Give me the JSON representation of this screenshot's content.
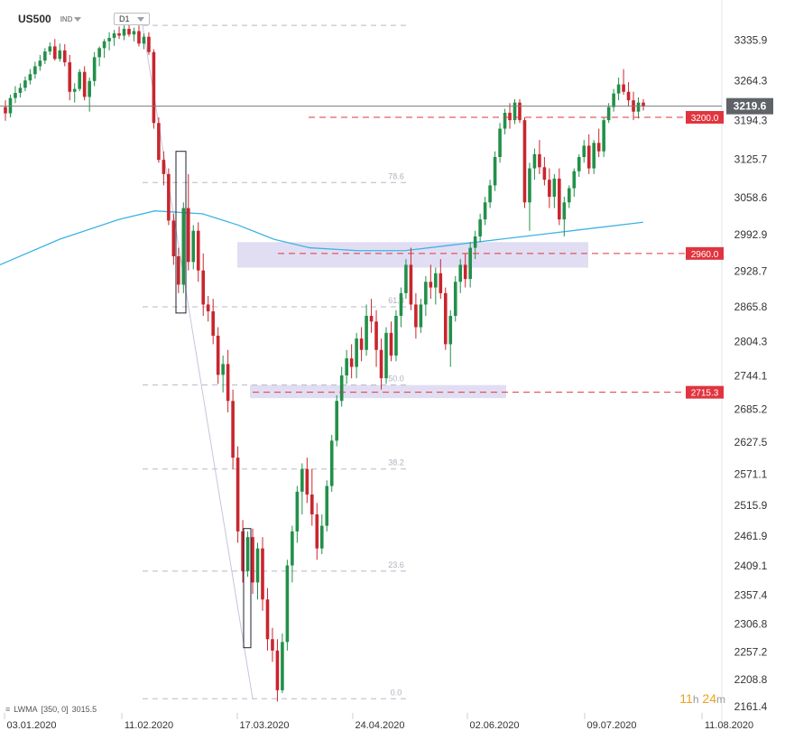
{
  "header": {
    "symbol": "US500",
    "exchange": "IND",
    "timeframe": "D1"
  },
  "indicator": {
    "name": "LWMA",
    "params": "[350, 0]",
    "value": "3015.5"
  },
  "timer": {
    "hours": "11",
    "h_unit": "h",
    "minutes": "24",
    "m_unit": "m"
  },
  "chart_data": {
    "type": "candlestick",
    "y_range": [
      2161.4,
      3375
    ],
    "y_ticks": [
      3335.9,
      3264.3,
      3194.3,
      3125.7,
      3058.6,
      2992.9,
      2928.7,
      2865.8,
      2804.3,
      2744.1,
      2685.2,
      2627.5,
      2571.1,
      2515.9,
      2461.9,
      2409.1,
      2357.4,
      2306.8,
      2257.2,
      2208.8,
      2161.4
    ],
    "x_labels": [
      "03.01.2020",
      "11.02.2020",
      "17.03.2020",
      "24.04.2020",
      "02.06.2020",
      "09.07.2020",
      "11.08.2020"
    ],
    "current_price": "3219.6",
    "levels": [
      {
        "label": "3200.0",
        "value": 3200.0
      },
      {
        "label": "2960.0",
        "value": 2960.0
      },
      {
        "label": "2715.3",
        "value": 2715.3
      }
    ],
    "fib_levels": [
      {
        "label": "78.6",
        "value": 3085
      },
      {
        "label": "61.8",
        "value": 2866
      },
      {
        "label": "50.0",
        "value": 2728
      },
      {
        "label": "38.2",
        "value": 2580
      },
      {
        "label": "23.6",
        "value": 2400
      },
      {
        "label": "0.0",
        "value": 2175
      }
    ],
    "zones": [
      {
        "from": 2935,
        "to": 2980
      },
      {
        "from": 2705,
        "to": 2728
      }
    ],
    "lwma_points": [
      [
        0,
        2940
      ],
      [
        50,
        2985
      ],
      [
        100,
        3020
      ],
      [
        130,
        3035
      ],
      [
        170,
        3030
      ],
      [
        200,
        3010
      ],
      [
        230,
        2985
      ],
      [
        260,
        2970
      ],
      [
        300,
        2965
      ],
      [
        340,
        2965
      ],
      [
        380,
        2975
      ],
      [
        420,
        2985
      ],
      [
        460,
        2995
      ],
      [
        500,
        3005
      ],
      [
        540,
        3015
      ]
    ],
    "candles": [
      [
        3218,
        3230,
        3194,
        3207
      ],
      [
        3207,
        3240,
        3200,
        3234
      ],
      [
        3234,
        3255,
        3225,
        3243
      ],
      [
        3243,
        3260,
        3235,
        3252
      ],
      [
        3252,
        3272,
        3246,
        3265
      ],
      [
        3265,
        3285,
        3258,
        3276
      ],
      [
        3276,
        3298,
        3268,
        3290
      ],
      [
        3290,
        3310,
        3282,
        3300
      ],
      [
        3300,
        3322,
        3294,
        3316
      ],
      [
        3316,
        3332,
        3310,
        3325
      ],
      [
        3325,
        3338,
        3300,
        3303
      ],
      [
        3303,
        3330,
        3298,
        3318
      ],
      [
        3318,
        3329,
        3290,
        3297
      ],
      [
        3297,
        3310,
        3230,
        3245
      ],
      [
        3245,
        3260,
        3226,
        3250
      ],
      [
        3250,
        3285,
        3246,
        3280
      ],
      [
        3280,
        3290,
        3230,
        3236
      ],
      [
        3236,
        3270,
        3210,
        3264
      ],
      [
        3264,
        3315,
        3255,
        3306
      ],
      [
        3306,
        3325,
        3290,
        3322
      ],
      [
        3322,
        3338,
        3305,
        3334
      ],
      [
        3334,
        3350,
        3318,
        3340
      ],
      [
        3340,
        3354,
        3326,
        3348
      ],
      [
        3348,
        3360,
        3338,
        3344
      ],
      [
        3344,
        3362,
        3336,
        3356
      ],
      [
        3356,
        3368,
        3342,
        3346
      ],
      [
        3346,
        3358,
        3334,
        3352
      ],
      [
        3352,
        3362,
        3325,
        3330
      ],
      [
        3330,
        3348,
        3320,
        3342
      ],
      [
        3342,
        3350,
        3310,
        3315
      ],
      [
        3315,
        3320,
        3180,
        3190
      ],
      [
        3190,
        3200,
        3120,
        3125
      ],
      [
        3125,
        3140,
        3080,
        3100
      ],
      [
        3100,
        3110,
        3010,
        3018
      ],
      [
        3018,
        3030,
        2940,
        2955
      ],
      [
        2955,
        2970,
        2890,
        2905
      ],
      [
        2905,
        3050,
        2890,
        3040
      ],
      [
        3040,
        3100,
        2930,
        2945
      ],
      [
        2945,
        3010,
        2932,
        3000
      ],
      [
        3000,
        3015,
        2910,
        2930
      ],
      [
        2930,
        2960,
        2850,
        2870
      ],
      [
        2870,
        2885,
        2840,
        2858
      ],
      [
        2858,
        2880,
        2800,
        2815
      ],
      [
        2815,
        2830,
        2730,
        2746
      ],
      [
        2746,
        2780,
        2715,
        2765
      ],
      [
        2765,
        2790,
        2680,
        2700
      ],
      [
        2700,
        2720,
        2580,
        2600
      ],
      [
        2600,
        2620,
        2450,
        2470
      ],
      [
        2470,
        2490,
        2380,
        2400
      ],
      [
        2400,
        2470,
        2390,
        2460
      ],
      [
        2460,
        2475,
        2360,
        2380
      ],
      [
        2380,
        2450,
        2350,
        2440
      ],
      [
        2440,
        2460,
        2330,
        2350
      ],
      [
        2350,
        2370,
        2260,
        2280
      ],
      [
        2280,
        2300,
        2240,
        2260
      ],
      [
        2260,
        2280,
        2170,
        2190
      ],
      [
        2190,
        2290,
        2185,
        2275
      ],
      [
        2275,
        2420,
        2260,
        2410
      ],
      [
        2410,
        2480,
        2380,
        2470
      ],
      [
        2470,
        2550,
        2450,
        2540
      ],
      [
        2540,
        2590,
        2500,
        2580
      ],
      [
        2580,
        2600,
        2520,
        2535
      ],
      [
        2535,
        2580,
        2480,
        2500
      ],
      [
        2500,
        2520,
        2420,
        2440
      ],
      [
        2440,
        2500,
        2430,
        2480
      ],
      [
        2480,
        2560,
        2470,
        2550
      ],
      [
        2550,
        2640,
        2540,
        2630
      ],
      [
        2630,
        2710,
        2620,
        2700
      ],
      [
        2700,
        2760,
        2690,
        2745
      ],
      [
        2745,
        2790,
        2730,
        2775
      ],
      [
        2775,
        2800,
        2740,
        2760
      ],
      [
        2760,
        2820,
        2740,
        2810
      ],
      [
        2810,
        2830,
        2770,
        2790
      ],
      [
        2790,
        2870,
        2780,
        2850
      ],
      [
        2850,
        2880,
        2820,
        2840
      ],
      [
        2840,
        2860,
        2760,
        2790
      ],
      [
        2790,
        2810,
        2720,
        2740
      ],
      [
        2740,
        2830,
        2730,
        2820
      ],
      [
        2820,
        2840,
        2770,
        2780
      ],
      [
        2780,
        2860,
        2770,
        2850
      ],
      [
        2850,
        2900,
        2830,
        2890
      ],
      [
        2890,
        2950,
        2880,
        2940
      ],
      [
        2940,
        2970,
        2860,
        2870
      ],
      [
        2870,
        2890,
        2810,
        2830
      ],
      [
        2830,
        2880,
        2820,
        2870
      ],
      [
        2870,
        2920,
        2850,
        2910
      ],
      [
        2910,
        2940,
        2880,
        2900
      ],
      [
        2900,
        2935,
        2870,
        2925
      ],
      [
        2925,
        2950,
        2880,
        2890
      ],
      [
        2890,
        2900,
        2790,
        2800
      ],
      [
        2800,
        2860,
        2760,
        2850
      ],
      [
        2850,
        2920,
        2840,
        2910
      ],
      [
        2910,
        2950,
        2890,
        2940
      ],
      [
        2940,
        2960,
        2900,
        2915
      ],
      [
        2915,
        2980,
        2900,
        2970
      ],
      [
        2970,
        3000,
        2950,
        2990
      ],
      [
        2990,
        3030,
        2980,
        3020
      ],
      [
        3020,
        3060,
        3010,
        3050
      ],
      [
        3050,
        3090,
        3040,
        3080
      ],
      [
        3080,
        3140,
        3070,
        3130
      ],
      [
        3130,
        3190,
        3120,
        3180
      ],
      [
        3180,
        3215,
        3170,
        3208
      ],
      [
        3208,
        3225,
        3180,
        3195
      ],
      [
        3195,
        3232,
        3188,
        3226
      ],
      [
        3226,
        3232,
        3190,
        3195
      ],
      [
        3195,
        3200,
        3040,
        3050
      ],
      [
        3050,
        3120,
        3000,
        3110
      ],
      [
        3110,
        3145,
        3090,
        3135
      ],
      [
        3135,
        3160,
        3100,
        3112
      ],
      [
        3112,
        3130,
        3080,
        3090
      ],
      [
        3090,
        3110,
        3040,
        3060
      ],
      [
        3060,
        3100,
        3040,
        3092
      ],
      [
        3092,
        3110,
        3010,
        3020
      ],
      [
        3020,
        3060,
        2990,
        3050
      ],
      [
        3050,
        3080,
        3040,
        3075
      ],
      [
        3075,
        3110,
        3060,
        3105
      ],
      [
        3105,
        3135,
        3095,
        3130
      ],
      [
        3130,
        3160,
        3120,
        3150
      ],
      [
        3150,
        3170,
        3100,
        3110
      ],
      [
        3110,
        3160,
        3100,
        3155
      ],
      [
        3155,
        3180,
        3130,
        3140
      ],
      [
        3140,
        3200,
        3130,
        3195
      ],
      [
        3195,
        3225,
        3190,
        3218
      ],
      [
        3218,
        3250,
        3210,
        3242
      ],
      [
        3242,
        3270,
        3230,
        3258
      ],
      [
        3258,
        3285,
        3240,
        3245
      ],
      [
        3245,
        3262,
        3220,
        3230
      ],
      [
        3230,
        3245,
        3195,
        3210
      ],
      [
        3210,
        3235,
        3198,
        3226
      ],
      [
        3226,
        3232,
        3212,
        3219.6
      ]
    ]
  }
}
